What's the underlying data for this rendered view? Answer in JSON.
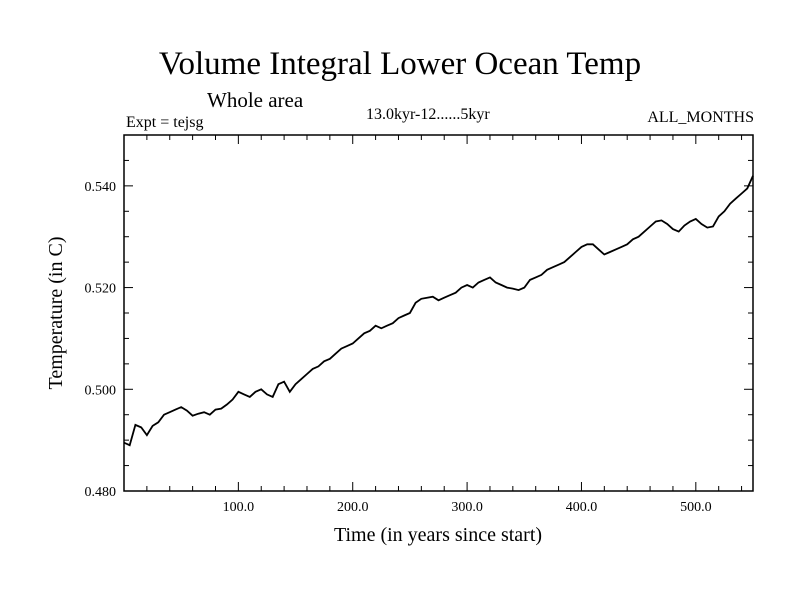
{
  "chart_data": {
    "type": "line",
    "title": "Volume Integral Lower Ocean Temp",
    "subtitle": "Whole area",
    "experiment": "Expt = tejsg",
    "period": "13.0kyr-12......5kyr",
    "months": "ALL_MONTHS",
    "xlabel": "Time (in years since start)",
    "ylabel": "Temperature (in C)",
    "xlim": [
      0,
      550
    ],
    "ylim": [
      0.48,
      0.55
    ],
    "xticks": [
      {
        "value": 100,
        "label": "100.0"
      },
      {
        "value": 200,
        "label": "200.0"
      },
      {
        "value": 300,
        "label": "300.0"
      },
      {
        "value": 400,
        "label": "400.0"
      },
      {
        "value": 500,
        "label": "500.0"
      }
    ],
    "yticks": [
      {
        "value": 0.48,
        "label": "0.480"
      },
      {
        "value": 0.5,
        "label": "0.500"
      },
      {
        "value": 0.52,
        "label": "0.520"
      },
      {
        "value": 0.54,
        "label": "0.540"
      }
    ],
    "series": [
      {
        "name": "temperature",
        "x": [
          0,
          5,
          10,
          15,
          20,
          25,
          30,
          35,
          40,
          45,
          50,
          55,
          60,
          65,
          70,
          75,
          80,
          85,
          90,
          95,
          100,
          105,
          110,
          115,
          120,
          125,
          130,
          135,
          140,
          145,
          150,
          155,
          160,
          165,
          170,
          175,
          180,
          185,
          190,
          195,
          200,
          205,
          210,
          215,
          220,
          225,
          230,
          235,
          240,
          245,
          250,
          255,
          260,
          265,
          270,
          275,
          280,
          285,
          290,
          295,
          300,
          305,
          310,
          315,
          320,
          325,
          330,
          335,
          340,
          345,
          350,
          355,
          360,
          365,
          370,
          375,
          380,
          385,
          390,
          395,
          400,
          405,
          410,
          415,
          420,
          425,
          430,
          435,
          440,
          445,
          450,
          455,
          460,
          465,
          470,
          475,
          480,
          485,
          490,
          495,
          500,
          505,
          510,
          515,
          520,
          525,
          530,
          535,
          540,
          545,
          550
        ],
        "values": [
          0.4895,
          0.489,
          0.493,
          0.4925,
          0.491,
          0.4928,
          0.4935,
          0.495,
          0.4955,
          0.496,
          0.4965,
          0.4958,
          0.4948,
          0.4952,
          0.4955,
          0.495,
          0.496,
          0.4962,
          0.497,
          0.498,
          0.4995,
          0.499,
          0.4985,
          0.4995,
          0.5,
          0.499,
          0.4985,
          0.501,
          0.5015,
          0.4995,
          0.501,
          0.502,
          0.503,
          0.504,
          0.5045,
          0.5055,
          0.506,
          0.507,
          0.508,
          0.5085,
          0.509,
          0.51,
          0.511,
          0.5115,
          0.5125,
          0.512,
          0.5125,
          0.513,
          0.514,
          0.5145,
          0.515,
          0.517,
          0.5178,
          0.518,
          0.5182,
          0.5175,
          0.518,
          0.5185,
          0.519,
          0.52,
          0.5205,
          0.52,
          0.521,
          0.5215,
          0.522,
          0.521,
          0.5205,
          0.52,
          0.5198,
          0.5195,
          0.52,
          0.5215,
          0.522,
          0.5225,
          0.5235,
          0.524,
          0.5245,
          0.525,
          0.526,
          0.527,
          0.528,
          0.5285,
          0.5285,
          0.5275,
          0.5265,
          0.527,
          0.5275,
          0.528,
          0.5285,
          0.5295,
          0.53,
          0.531,
          0.532,
          0.533,
          0.5332,
          0.5325,
          0.5315,
          0.531,
          0.5322,
          0.533,
          0.5335,
          0.5325,
          0.5318,
          0.532,
          0.534,
          0.535,
          0.5365,
          0.5375,
          0.5385,
          0.5395,
          0.542
        ]
      }
    ]
  }
}
